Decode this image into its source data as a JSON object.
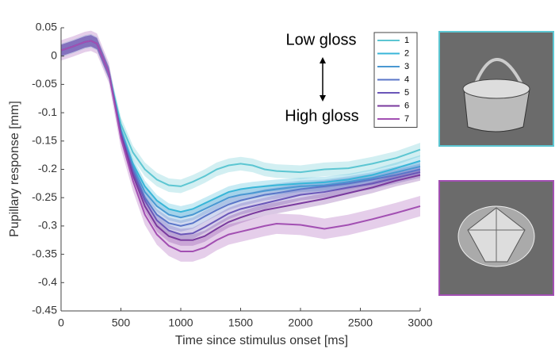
{
  "chart_data": {
    "type": "line",
    "xlabel": "Time since stimulus onset [ms]",
    "ylabel": "Pupillary response [mm]",
    "annotations": [
      "Low gloss",
      "High gloss"
    ],
    "x": [
      0,
      100,
      200,
      250,
      300,
      400,
      500,
      600,
      700,
      800,
      900,
      1000,
      1100,
      1200,
      1300,
      1400,
      1500,
      1600,
      1700,
      1800,
      2000,
      2200,
      2400,
      2600,
      2800,
      3000
    ],
    "xlim": [
      0,
      3000
    ],
    "xticks": [
      0,
      500,
      1000,
      1500,
      2000,
      2500,
      3000
    ],
    "ylim": [
      -0.45,
      0.05
    ],
    "yticks": [
      0.05,
      0,
      -0.05,
      -0.1,
      -0.15,
      -0.2,
      -0.25,
      -0.3,
      -0.35,
      -0.4,
      -0.45
    ],
    "legend": "upper right",
    "series": [
      {
        "name": "1",
        "color": "#5cc6d2",
        "error": 0.012,
        "values": [
          0.01,
          0.017,
          0.025,
          0.027,
          0.022,
          -0.03,
          -0.12,
          -0.17,
          -0.2,
          -0.218,
          -0.228,
          -0.23,
          -0.222,
          -0.212,
          -0.2,
          -0.193,
          -0.19,
          -0.193,
          -0.2,
          -0.203,
          -0.205,
          -0.2,
          -0.198,
          -0.19,
          -0.18,
          -0.165
        ]
      },
      {
        "name": "2",
        "color": "#38b6d8",
        "error": 0.01,
        "values": [
          0.01,
          0.017,
          0.025,
          0.027,
          0.022,
          -0.03,
          -0.13,
          -0.19,
          -0.23,
          -0.255,
          -0.27,
          -0.275,
          -0.27,
          -0.26,
          -0.25,
          -0.24,
          -0.235,
          -0.232,
          -0.23,
          -0.228,
          -0.225,
          -0.223,
          -0.218,
          -0.21,
          -0.198,
          -0.185
        ]
      },
      {
        "name": "3",
        "color": "#4a98d2",
        "error": 0.01,
        "values": [
          0.01,
          0.017,
          0.025,
          0.027,
          0.022,
          -0.03,
          -0.132,
          -0.195,
          -0.24,
          -0.265,
          -0.28,
          -0.285,
          -0.28,
          -0.27,
          -0.26,
          -0.25,
          -0.245,
          -0.242,
          -0.238,
          -0.235,
          -0.23,
          -0.228,
          -0.222,
          -0.215,
          -0.205,
          -0.195
        ]
      },
      {
        "name": "4",
        "color": "#5a76c8",
        "error": 0.01,
        "values": [
          0.01,
          0.017,
          0.025,
          0.027,
          0.022,
          -0.03,
          -0.135,
          -0.2,
          -0.25,
          -0.28,
          -0.295,
          -0.3,
          -0.295,
          -0.283,
          -0.272,
          -0.262,
          -0.255,
          -0.25,
          -0.245,
          -0.242,
          -0.235,
          -0.23,
          -0.225,
          -0.218,
          -0.21,
          -0.2
        ]
      },
      {
        "name": "5",
        "color": "#6a56b8",
        "error": 0.01,
        "values": [
          0.01,
          0.017,
          0.025,
          0.027,
          0.022,
          -0.03,
          -0.137,
          -0.205,
          -0.255,
          -0.29,
          -0.308,
          -0.315,
          -0.313,
          -0.302,
          -0.29,
          -0.278,
          -0.27,
          -0.265,
          -0.26,
          -0.255,
          -0.245,
          -0.24,
          -0.232,
          -0.225,
          -0.215,
          -0.205
        ]
      },
      {
        "name": "6",
        "color": "#7a3a9e",
        "error": 0.01,
        "values": [
          0.01,
          0.017,
          0.025,
          0.027,
          0.022,
          -0.03,
          -0.14,
          -0.21,
          -0.265,
          -0.3,
          -0.318,
          -0.325,
          -0.325,
          -0.318,
          -0.305,
          -0.293,
          -0.285,
          -0.278,
          -0.272,
          -0.268,
          -0.26,
          -0.252,
          -0.242,
          -0.232,
          -0.22,
          -0.21
        ]
      },
      {
        "name": "7",
        "color": "#a24fb2",
        "error": 0.018,
        "values": [
          0.01,
          0.017,
          0.025,
          0.027,
          0.022,
          -0.03,
          -0.145,
          -0.22,
          -0.28,
          -0.315,
          -0.335,
          -0.345,
          -0.345,
          -0.338,
          -0.325,
          -0.315,
          -0.31,
          -0.305,
          -0.3,
          -0.296,
          -0.298,
          -0.305,
          -0.298,
          -0.288,
          -0.277,
          -0.265
        ]
      }
    ]
  }
}
